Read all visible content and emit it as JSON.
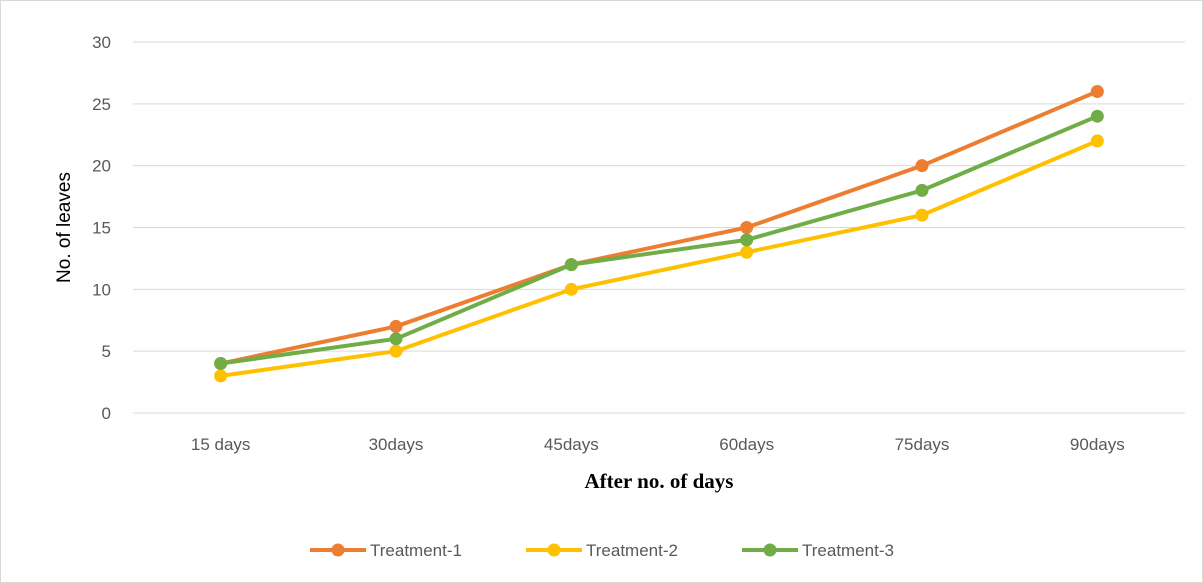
{
  "chart_data": {
    "type": "line",
    "categories": [
      "15 days",
      "30days",
      "45days",
      "60days",
      "75days",
      "90days"
    ],
    "series": [
      {
        "name": "Treatment-1",
        "color": "#ED7D31",
        "values": [
          4,
          7,
          12,
          15,
          20,
          26
        ]
      },
      {
        "name": "Treatment-2",
        "color": "#FFC000",
        "values": [
          3,
          5,
          10,
          13,
          16,
          22
        ]
      },
      {
        "name": "Treatment-3",
        "color": "#70AD47",
        "values": [
          4,
          6,
          12,
          14,
          18,
          24
        ]
      }
    ],
    "xlabel": "After no. of days",
    "ylabel": "No. of leaves",
    "ylim": [
      0,
      30
    ],
    "yticks": [
      0,
      5,
      10,
      15,
      20,
      25,
      30
    ],
    "grid": true,
    "legend_position": "bottom",
    "markers": true
  }
}
